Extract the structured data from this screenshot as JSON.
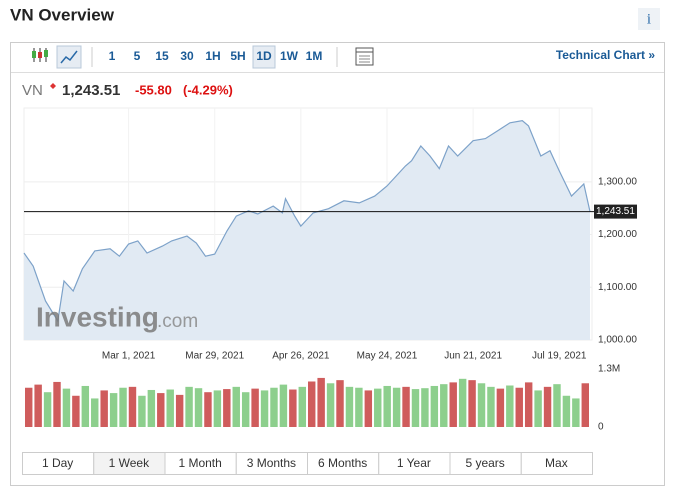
{
  "header": {
    "title": "VN Overview",
    "info_icon": "i"
  },
  "toolbar": {
    "intervals": [
      "1",
      "5",
      "15",
      "30",
      "1H",
      "5H",
      "1D",
      "1W",
      "1M"
    ],
    "technical_link": "Technical Chart »"
  },
  "quote": {
    "symbol": "VN",
    "change": "-55.80",
    "change_percent": "(-4.29%)"
  },
  "watermark": {
    "brand": "Investing",
    "domain": ".com"
  },
  "ranges": [
    "1 Day",
    "1 Week",
    "1 Month",
    "3 Months",
    "6 Months",
    "1 Year",
    "5 years",
    "Max"
  ],
  "chart_data": {
    "type": "line",
    "x": [
      "2021-01-26",
      "2021-01-29",
      "2021-02-02",
      "2021-02-06",
      "2021-02-08",
      "2021-02-11",
      "2021-02-14",
      "2021-02-18",
      "2021-02-23",
      "2021-02-26",
      "2021-03-01",
      "2021-03-04",
      "2021-03-07",
      "2021-03-12",
      "2021-03-15",
      "2021-03-20",
      "2021-03-23",
      "2021-03-26",
      "2021-03-29",
      "2021-04-02",
      "2021-04-05",
      "2021-04-09",
      "2021-04-12",
      "2021-04-17",
      "2021-04-20",
      "2021-04-21",
      "2021-04-24",
      "2021-04-26",
      "2021-04-30",
      "2021-05-05",
      "2021-05-10",
      "2021-05-15",
      "2021-05-20",
      "2021-05-24",
      "2021-05-27",
      "2021-05-30",
      "2021-06-01",
      "2021-06-04",
      "2021-06-07",
      "2021-06-10",
      "2021-06-13",
      "2021-06-16",
      "2021-06-21",
      "2021-06-25",
      "2021-06-29",
      "2021-07-03",
      "2021-07-07",
      "2021-07-09",
      "2021-07-13",
      "2021-07-16",
      "2021-07-19",
      "2021-07-23",
      "2021-07-27",
      "2021-07-29"
    ],
    "values": [
      1165,
      1140,
      1074,
      1036,
      1112,
      1093,
      1135,
      1169,
      1173,
      1159,
      1182,
      1188,
      1165,
      1178,
      1188,
      1197,
      1184,
      1159,
      1163,
      1207,
      1235,
      1245,
      1239,
      1254,
      1241,
      1268,
      1235,
      1216,
      1241,
      1249,
      1264,
      1260,
      1273,
      1292,
      1311,
      1330,
      1340,
      1368,
      1349,
      1325,
      1368,
      1349,
      1378,
      1382,
      1397,
      1412,
      1416,
      1406,
      1349,
      1359,
      1321,
      1273,
      1296,
      1243.51
    ],
    "color": "#7da2c9",
    "fill": "#e1eaf3",
    "xlim": [
      "2021-01-26",
      "2021-07-29"
    ],
    "xticks": [
      {
        "value": "2021-03-01",
        "label": "Mar 1, 2021"
      },
      {
        "value": "2021-03-29",
        "label": "Mar 29, 2021"
      },
      {
        "value": "2021-04-26",
        "label": "Apr 26, 2021"
      },
      {
        "value": "2021-05-24",
        "label": "May 24, 2021"
      },
      {
        "value": "2021-06-21",
        "label": "Jun 21, 2021"
      },
      {
        "value": "2021-07-19",
        "label": "Jul 19, 2021"
      }
    ],
    "ylim": [
      1000,
      1440
    ],
    "yticks": [
      {
        "value": 1000,
        "label": "1,000.00"
      },
      {
        "value": 1100,
        "label": "1,100.00"
      },
      {
        "value": 1200,
        "label": "1,200.00"
      },
      {
        "value": 1300,
        "label": "1,300.00"
      }
    ],
    "last": {
      "value": 1243.51,
      "label": "1,243.51"
    },
    "volume": {
      "values": [
        880000,
        950000,
        780000,
        1010000,
        860000,
        700000,
        920000,
        640000,
        820000,
        760000,
        880000,
        900000,
        700000,
        830000,
        760000,
        840000,
        720000,
        900000,
        870000,
        780000,
        820000,
        850000,
        900000,
        780000,
        860000,
        820000,
        880000,
        950000,
        840000,
        900000,
        1020000,
        1100000,
        980000,
        1050000,
        900000,
        880000,
        820000,
        860000,
        920000,
        880000,
        900000,
        850000,
        870000,
        920000,
        960000,
        1000000,
        1080000,
        1050000,
        980000,
        900000,
        860000,
        930000,
        880000,
        1000000,
        820000,
        900000,
        960000,
        700000,
        640000,
        980000
      ],
      "colors": [
        "#cf5c5c",
        "#cf5c5c",
        "#8dcf8d",
        "#cf5c5c",
        "#8dcf8d",
        "#cf5c5c",
        "#8dcf8d",
        "#8dcf8d",
        "#cf5c5c",
        "#8dcf8d",
        "#8dcf8d",
        "#cf5c5c",
        "#8dcf8d",
        "#8dcf8d",
        "#cf5c5c",
        "#8dcf8d",
        "#cf5c5c",
        "#8dcf8d",
        "#8dcf8d",
        "#cf5c5c",
        "#8dcf8d",
        "#cf5c5c",
        "#8dcf8d",
        "#8dcf8d",
        "#cf5c5c",
        "#8dcf8d",
        "#8dcf8d",
        "#8dcf8d",
        "#cf5c5c",
        "#8dcf8d",
        "#cf5c5c",
        "#cf5c5c",
        "#8dcf8d",
        "#cf5c5c",
        "#8dcf8d",
        "#8dcf8d",
        "#cf5c5c",
        "#8dcf8d",
        "#8dcf8d",
        "#8dcf8d",
        "#cf5c5c",
        "#8dcf8d",
        "#8dcf8d",
        "#8dcf8d",
        "#8dcf8d",
        "#cf5c5c",
        "#8dcf8d",
        "#cf5c5c",
        "#8dcf8d",
        "#8dcf8d",
        "#cf5c5c",
        "#8dcf8d",
        "#cf5c5c",
        "#cf5c5c",
        "#8dcf8d",
        "#cf5c5c",
        "#8dcf8d",
        "#8dcf8d",
        "#8dcf8d",
        "#cf5c5c"
      ],
      "ylim": [
        0,
        1300000
      ],
      "yticks": [
        {
          "value": 1300000,
          "label": "1.3M"
        },
        0
      ]
    }
  }
}
